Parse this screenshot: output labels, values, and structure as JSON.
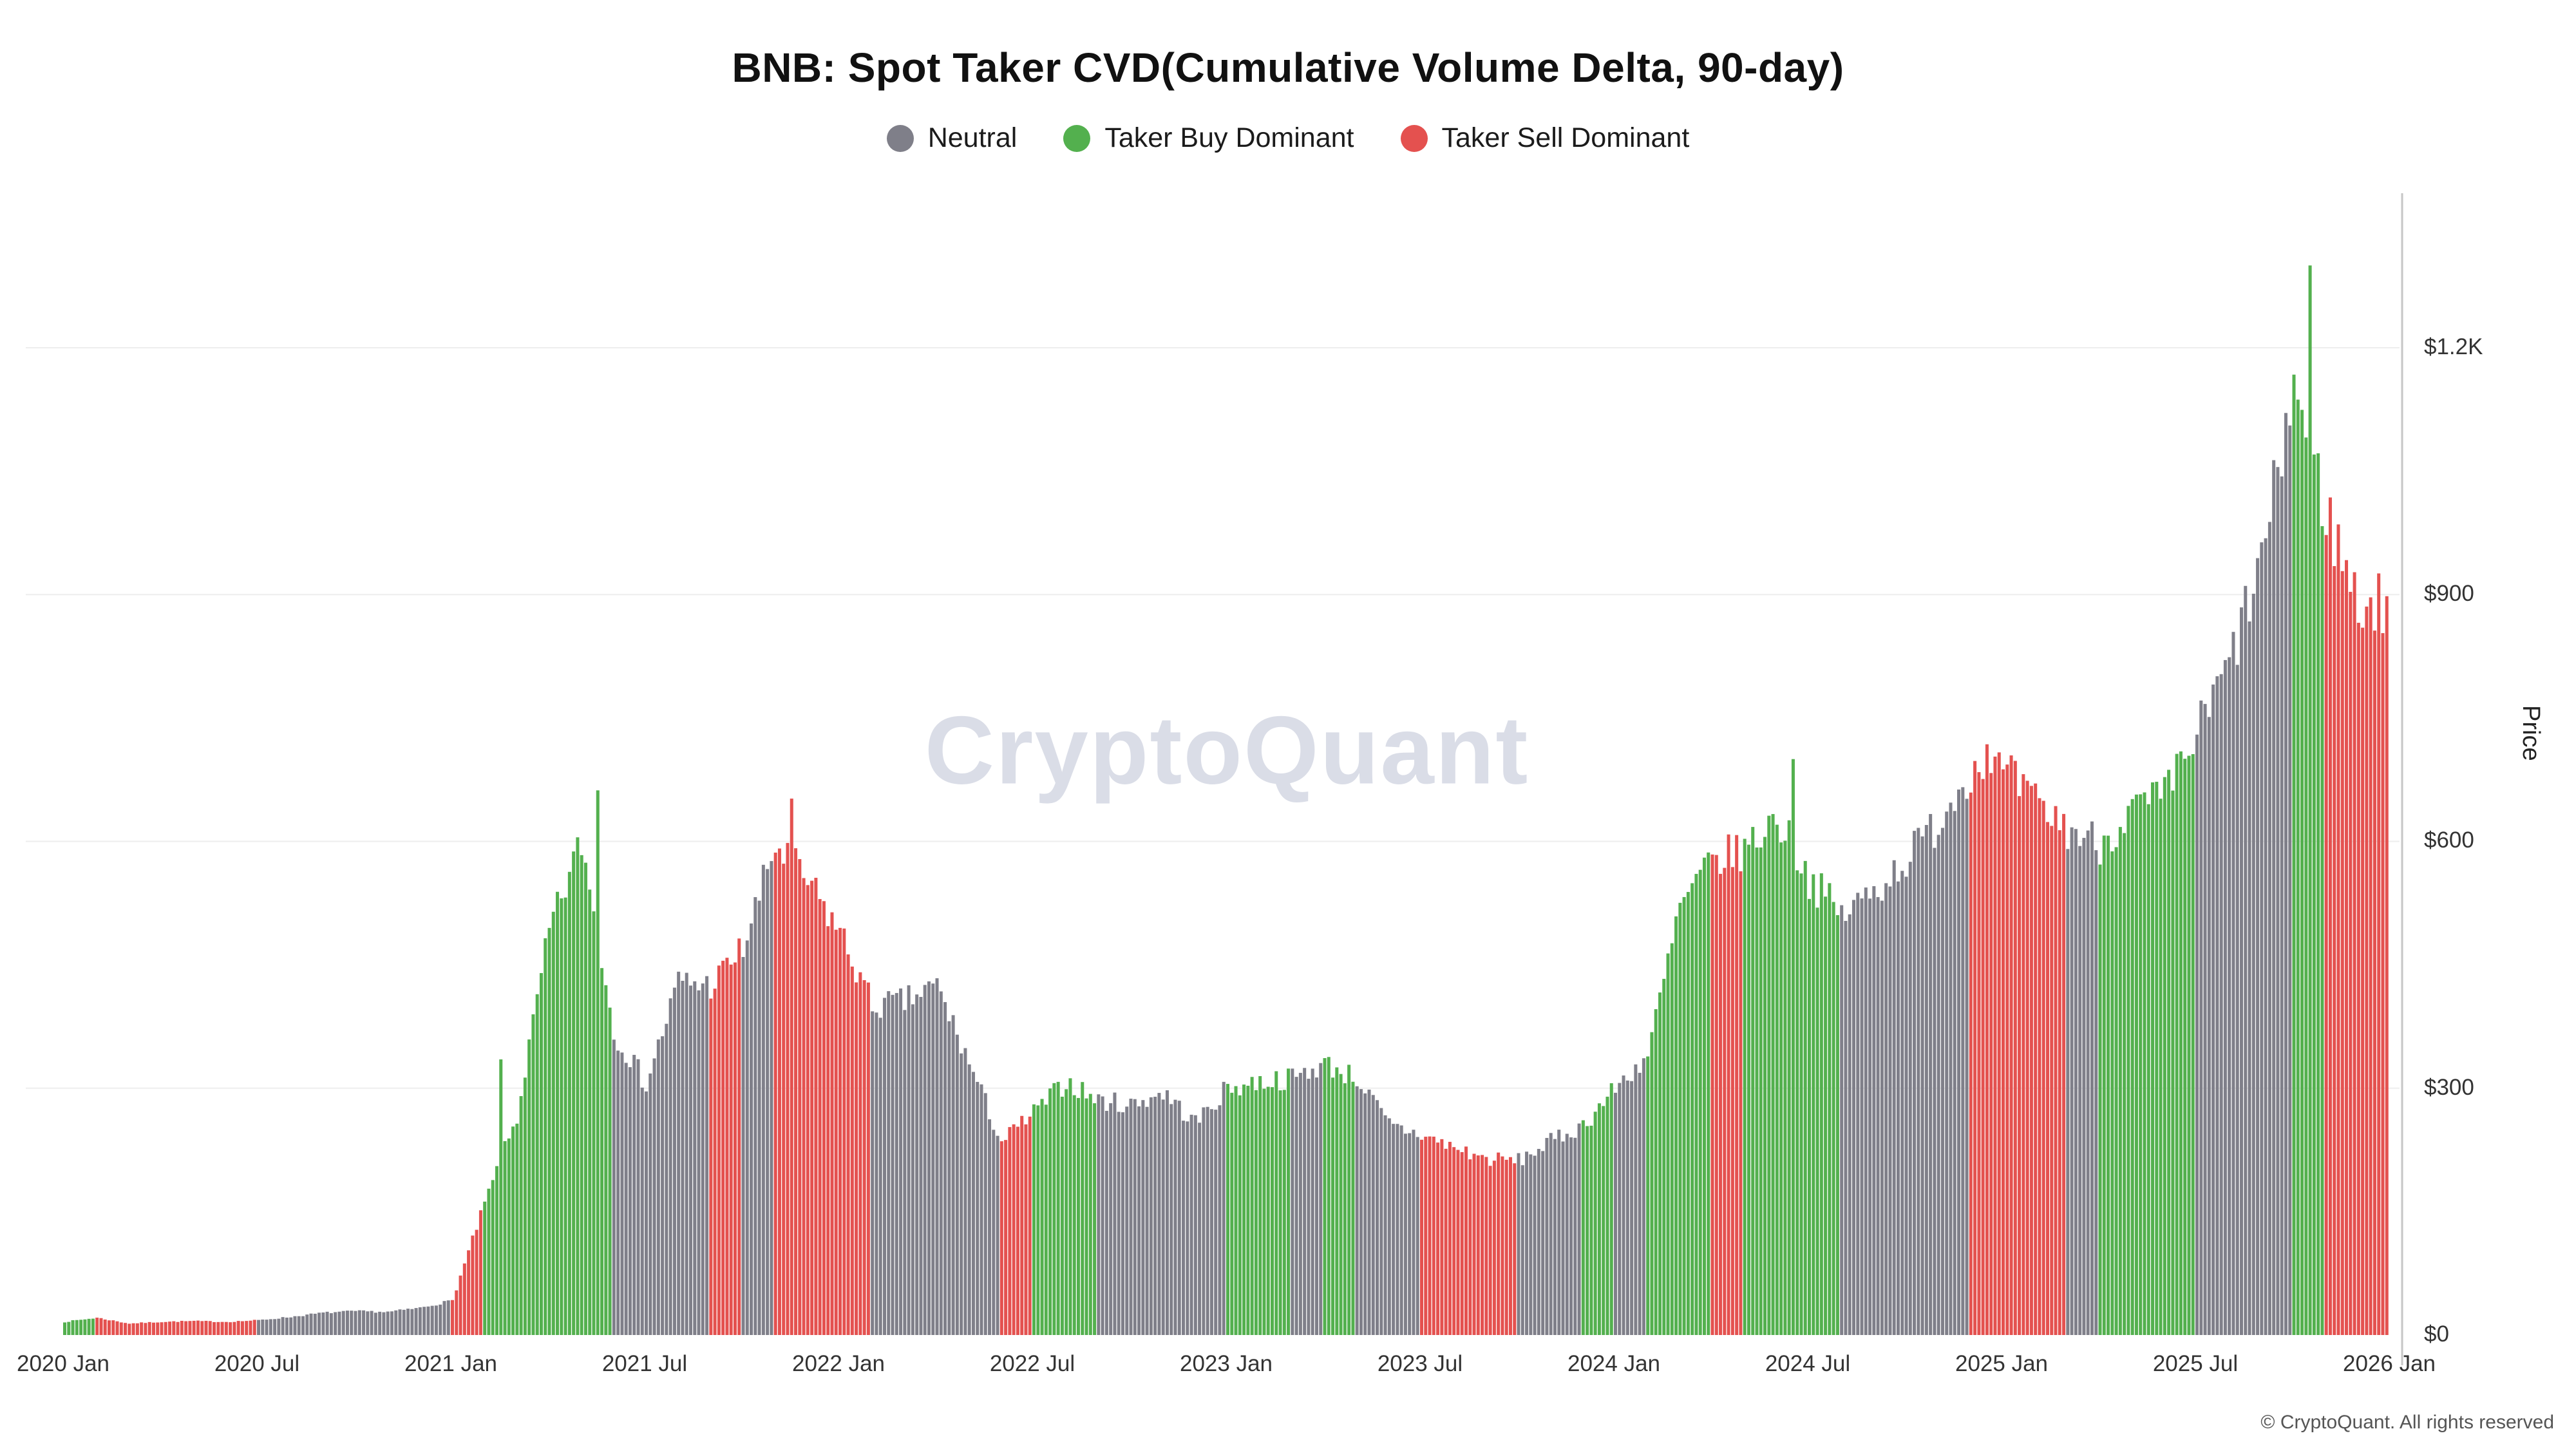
{
  "page": {
    "watermark": "CryptoQuant",
    "footer": "© CryptoQuant. All rights reserved"
  },
  "chart_data": {
    "type": "bar",
    "title": "BNB: Spot Taker CVD(Cumulative Volume Delta, 90-day)",
    "ylabel": "Price",
    "xlabel": "",
    "grid": "horizontal",
    "legend_position": "top-center",
    "ylim": [
      0,
      1380
    ],
    "unit": "USD",
    "legend": [
      {
        "key": "neutral",
        "label": "Neutral",
        "color": "#7f7f89"
      },
      {
        "key": "buy",
        "label": "Taker Buy Dominant",
        "color": "#53b04e"
      },
      {
        "key": "sell",
        "label": "Taker Sell Dominant",
        "color": "#e4514f"
      }
    ],
    "colors": {
      "neutral": "#7f7f89",
      "buy": "#53b04e",
      "sell": "#e4514f"
    },
    "x_ticks": [
      "2020 Jan",
      "2020 Jul",
      "2021 Jan",
      "2021 Jul",
      "2022 Jan",
      "2022 Jul",
      "2023 Jan",
      "2023 Jul",
      "2024 Jan",
      "2024 Jul",
      "2025 Jan",
      "2025 Jul",
      "2026 Jan"
    ],
    "y_ticks": [
      {
        "label": "$0",
        "value": 0
      },
      {
        "label": "$300",
        "value": 300
      },
      {
        "label": "$600",
        "value": 600
      },
      {
        "label": "$900",
        "value": 900
      },
      {
        "label": "$1.2K",
        "value": 1200
      }
    ],
    "points": [
      {
        "m": "2020-01",
        "price": 16,
        "regime": "buy"
      },
      {
        "m": "2020-02",
        "price": 21,
        "regime": "sell"
      },
      {
        "m": "2020-03",
        "price": 14,
        "regime": "sell"
      },
      {
        "m": "2020-04",
        "price": 16,
        "regime": "sell"
      },
      {
        "m": "2020-05",
        "price": 17,
        "regime": "sell"
      },
      {
        "m": "2020-06",
        "price": 16,
        "regime": "sell"
      },
      {
        "m": "2020-07",
        "price": 18,
        "regime": "neutral"
      },
      {
        "m": "2020-08",
        "price": 22,
        "regime": "neutral"
      },
      {
        "m": "2020-09",
        "price": 27,
        "regime": "neutral"
      },
      {
        "m": "2020-10",
        "price": 29,
        "regime": "neutral"
      },
      {
        "m": "2020-11",
        "price": 28,
        "regime": "neutral"
      },
      {
        "m": "2020-12",
        "price": 33,
        "regime": "neutral"
      },
      {
        "m": "2021-01",
        "price": 42,
        "regime": "sell"
      },
      {
        "m": "2021-02",
        "price": 160,
        "regime": "buy",
        "peak": 335
      },
      {
        "m": "2021-03",
        "price": 265,
        "regime": "buy"
      },
      {
        "m": "2021-04",
        "price": 490,
        "regime": "buy"
      },
      {
        "m": "2021-05",
        "price": 600,
        "regime": "buy",
        "peak": 662
      },
      {
        "m": "2021-06",
        "price": 370,
        "regime": "neutral"
      },
      {
        "m": "2021-07",
        "price": 305,
        "regime": "neutral"
      },
      {
        "m": "2021-08",
        "price": 430,
        "regime": "neutral"
      },
      {
        "m": "2021-09",
        "price": 425,
        "regime": "sell"
      },
      {
        "m": "2021-10",
        "price": 470,
        "regime": "neutral"
      },
      {
        "m": "2021-11",
        "price": 595,
        "regime": "sell",
        "peak": 652
      },
      {
        "m": "2021-12",
        "price": 550,
        "regime": "sell"
      },
      {
        "m": "2022-01",
        "price": 490,
        "regime": "sell"
      },
      {
        "m": "2022-02",
        "price": 400,
        "regime": "neutral"
      },
      {
        "m": "2022-03",
        "price": 405,
        "regime": "neutral"
      },
      {
        "m": "2022-04",
        "price": 425,
        "regime": "neutral"
      },
      {
        "m": "2022-05",
        "price": 330,
        "regime": "neutral"
      },
      {
        "m": "2022-06",
        "price": 235,
        "regime": "sell"
      },
      {
        "m": "2022-07",
        "price": 270,
        "regime": "buy"
      },
      {
        "m": "2022-08",
        "price": 308,
        "regime": "buy"
      },
      {
        "m": "2022-09",
        "price": 285,
        "regime": "neutral"
      },
      {
        "m": "2022-10",
        "price": 280,
        "regime": "neutral"
      },
      {
        "m": "2022-11",
        "price": 295,
        "regime": "neutral"
      },
      {
        "m": "2022-12",
        "price": 258,
        "regime": "neutral"
      },
      {
        "m": "2023-01",
        "price": 300,
        "regime": "buy"
      },
      {
        "m": "2023-02",
        "price": 308,
        "regime": "buy"
      },
      {
        "m": "2023-03",
        "price": 312,
        "regime": "neutral"
      },
      {
        "m": "2023-04",
        "price": 330,
        "regime": "buy"
      },
      {
        "m": "2023-05",
        "price": 312,
        "regime": "neutral"
      },
      {
        "m": "2023-06",
        "price": 255,
        "regime": "neutral"
      },
      {
        "m": "2023-07",
        "price": 243,
        "regime": "sell"
      },
      {
        "m": "2023-08",
        "price": 228,
        "regime": "sell"
      },
      {
        "m": "2023-09",
        "price": 214,
        "regime": "sell"
      },
      {
        "m": "2023-10",
        "price": 212,
        "regime": "neutral"
      },
      {
        "m": "2023-11",
        "price": 235,
        "regime": "neutral"
      },
      {
        "m": "2023-12",
        "price": 255,
        "regime": "buy"
      },
      {
        "m": "2024-01",
        "price": 300,
        "regime": "neutral"
      },
      {
        "m": "2024-02",
        "price": 340,
        "regime": "buy"
      },
      {
        "m": "2024-03",
        "price": 520,
        "regime": "buy"
      },
      {
        "m": "2024-04",
        "price": 575,
        "regime": "sell"
      },
      {
        "m": "2024-05",
        "price": 590,
        "regime": "buy"
      },
      {
        "m": "2024-06",
        "price": 630,
        "regime": "buy",
        "peak": 700
      },
      {
        "m": "2024-07",
        "price": 555,
        "regime": "buy"
      },
      {
        "m": "2024-08",
        "price": 510,
        "regime": "neutral"
      },
      {
        "m": "2024-09",
        "price": 540,
        "regime": "neutral"
      },
      {
        "m": "2024-10",
        "price": 578,
        "regime": "neutral"
      },
      {
        "m": "2024-11",
        "price": 625,
        "regime": "neutral"
      },
      {
        "m": "2024-12",
        "price": 690,
        "regime": "sell",
        "peak": 718
      },
      {
        "m": "2025-01",
        "price": 685,
        "regime": "sell"
      },
      {
        "m": "2025-02",
        "price": 645,
        "regime": "sell"
      },
      {
        "m": "2025-03",
        "price": 615,
        "regime": "neutral"
      },
      {
        "m": "2025-04",
        "price": 598,
        "regime": "buy"
      },
      {
        "m": "2025-05",
        "price": 638,
        "regime": "buy"
      },
      {
        "m": "2025-06",
        "price": 652,
        "regime": "buy"
      },
      {
        "m": "2025-07",
        "price": 730,
        "regime": "neutral"
      },
      {
        "m": "2025-08",
        "price": 815,
        "regime": "neutral"
      },
      {
        "m": "2025-09",
        "price": 940,
        "regime": "neutral",
        "peak": 1055
      },
      {
        "m": "2025-10",
        "price": 1160,
        "regime": "buy",
        "peak": 1300
      },
      {
        "m": "2025-11",
        "price": 1000,
        "regime": "sell"
      },
      {
        "m": "2025-12",
        "price": 888,
        "regime": "sell"
      }
    ]
  }
}
